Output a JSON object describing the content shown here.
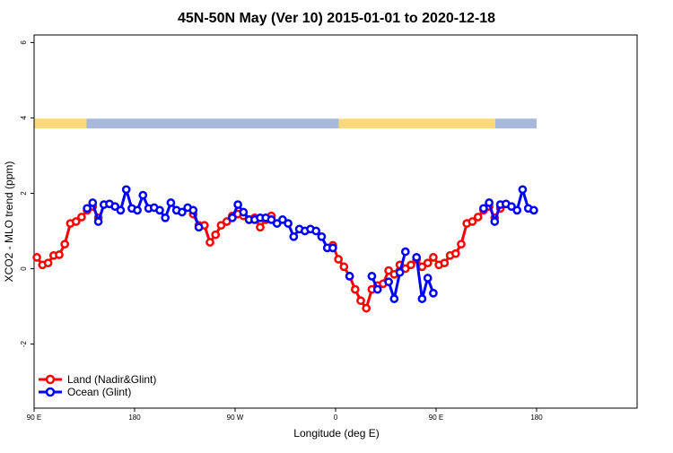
{
  "chart_data": {
    "type": "line",
    "title": "45N-50N May (Ver 10)   2015-01-01 to 2020-12-18",
    "xlabel": "Longitude (deg E)",
    "ylabel": "XCO2 - MLO trend (ppm)",
    "xlim": [
      90,
      450
    ],
    "ylim": [
      -3.7,
      6.2
    ],
    "x_ticks": [
      {
        "value": 90,
        "label": "90 E"
      },
      {
        "value": 180,
        "label": "180"
      },
      {
        "value": 270,
        "label": "90 W"
      },
      {
        "value": 360,
        "label": "0"
      },
      {
        "value": 450,
        "label": "90 E"
      },
      {
        "value": 540,
        "label": "180"
      }
    ],
    "y_ticks": [
      {
        "value": -2,
        "label": "-2"
      },
      {
        "value": 0,
        "label": "0"
      },
      {
        "value": 2,
        "label": "2"
      },
      {
        "value": 4,
        "label": "4"
      },
      {
        "value": 6,
        "label": "6"
      }
    ],
    "land_ocean_band": {
      "y_range": [
        3.72,
        3.98
      ],
      "land_color": "#f8d878",
      "ocean_color": "#a8b8d8",
      "segments": [
        {
          "from": 90,
          "to": 137,
          "type": "land"
        },
        {
          "from": 137,
          "to": 363,
          "type": "ocean"
        },
        {
          "from": 363,
          "to": 503,
          "type": "land"
        },
        {
          "from": 503,
          "to": 540,
          "type": "ocean"
        }
      ]
    },
    "legend_position": "bottom-left",
    "series": [
      {
        "name": "Land (Nadir&Glint)",
        "color": "#ff0000",
        "segments": [
          {
            "x": [
              92.5,
              97.5,
              102.5,
              107.5,
              112.5,
              117.5,
              122.5,
              127.5,
              132.5,
              137.5,
              142.5,
              147.5
            ],
            "y": [
              0.3,
              0.1,
              0.15,
              0.35,
              0.37,
              0.65,
              1.2,
              1.25,
              1.37,
              1.55,
              1.65,
              1.35
            ]
          },
          {
            "x": [
              232.5,
              237.5,
              242.5,
              247.5,
              252.5,
              257.5,
              262.5,
              267.5,
              272.5,
              277.5,
              282.5,
              287.5,
              292.5,
              297.5,
              302.5
            ],
            "y": [
              1.45,
              1.15,
              1.15,
              0.7,
              0.9,
              1.15,
              1.25,
              1.4,
              1.45,
              1.4,
              1.3,
              1.35,
              1.1,
              1.3,
              1.4
            ]
          },
          {
            "x": [
              357.5,
              362.5,
              367.5,
              372.5,
              377.5,
              382.5,
              387.5,
              392.5,
              397.5,
              402.5,
              407.5,
              412.5,
              417.5,
              422.5,
              427.5,
              432.5,
              437.5,
              442.5,
              447.5,
              452.5,
              457.5,
              462.5,
              467.5,
              472.5,
              477.5,
              482.5,
              487.5,
              492.5,
              497.5,
              502.5,
              507.5
            ],
            "y": [
              0.62,
              0.25,
              0.05,
              -0.2,
              -0.55,
              -0.85,
              -1.05,
              -0.55,
              -0.45,
              -0.4,
              -0.05,
              -0.15,
              0.1,
              0.0,
              0.1,
              0.25,
              0.05,
              0.15,
              0.3,
              0.1,
              0.15,
              0.35,
              0.4,
              0.65,
              1.2,
              1.25,
              1.37,
              1.55,
              1.65,
              1.35,
              1.6
            ]
          }
        ]
      },
      {
        "name": "Ocean (Glint)",
        "color": "#0000ff",
        "segments": [
          {
            "x": [
              137.5,
              142.5,
              147.5,
              152.5,
              157.5,
              162.5,
              167.5,
              172.5,
              177.5,
              182.5,
              187.5,
              192.5,
              197.5,
              202.5,
              207.5,
              212.5,
              217.5,
              222.5,
              227.5,
              232.5,
              237.5
            ],
            "y": [
              1.6,
              1.75,
              1.25,
              1.7,
              1.72,
              1.65,
              1.55,
              2.1,
              1.6,
              1.55,
              1.95,
              1.6,
              1.62,
              1.55,
              1.35,
              1.75,
              1.55,
              1.5,
              1.62,
              1.55,
              1.1
            ]
          },
          {
            "x": [
              267.5,
              272.5,
              277.5,
              282.5,
              287.5,
              292.5,
              297.5,
              302.5,
              307.5,
              312.5,
              317.5,
              322.5,
              327.5,
              332.5,
              337.5,
              342.5,
              347.5,
              352.5,
              357.5
            ],
            "y": [
              1.35,
              1.7,
              1.5,
              1.3,
              1.3,
              1.35,
              1.35,
              1.3,
              1.2,
              1.3,
              1.2,
              0.85,
              1.05,
              1.0,
              1.05,
              1.0,
              0.85,
              0.55,
              0.55
            ]
          },
          {
            "x": [
              372.5,
              377.5,
              382.5,
              387.5,
              392.5,
              397.5,
              402.5,
              407.5,
              412.5,
              417.5,
              422.5,
              427.5,
              432.5,
              437.5,
              442.5,
              447.5
            ],
            "y": [
              -0.2,
              null,
              null,
              null,
              -0.2,
              -0.55,
              null,
              -0.35,
              -0.8,
              -0.1,
              0.45,
              null,
              0.3,
              -0.8,
              -0.25,
              -0.65
            ]
          },
          {
            "x": [
              492.5,
              497.5,
              502.5,
              507.5,
              512.5,
              517.5,
              522.5,
              527.5,
              532.5,
              537.5
            ],
            "y": [
              1.6,
              1.75,
              1.25,
              1.7,
              1.72,
              1.65,
              1.55,
              2.1,
              1.6,
              1.55
            ]
          }
        ]
      }
    ]
  }
}
